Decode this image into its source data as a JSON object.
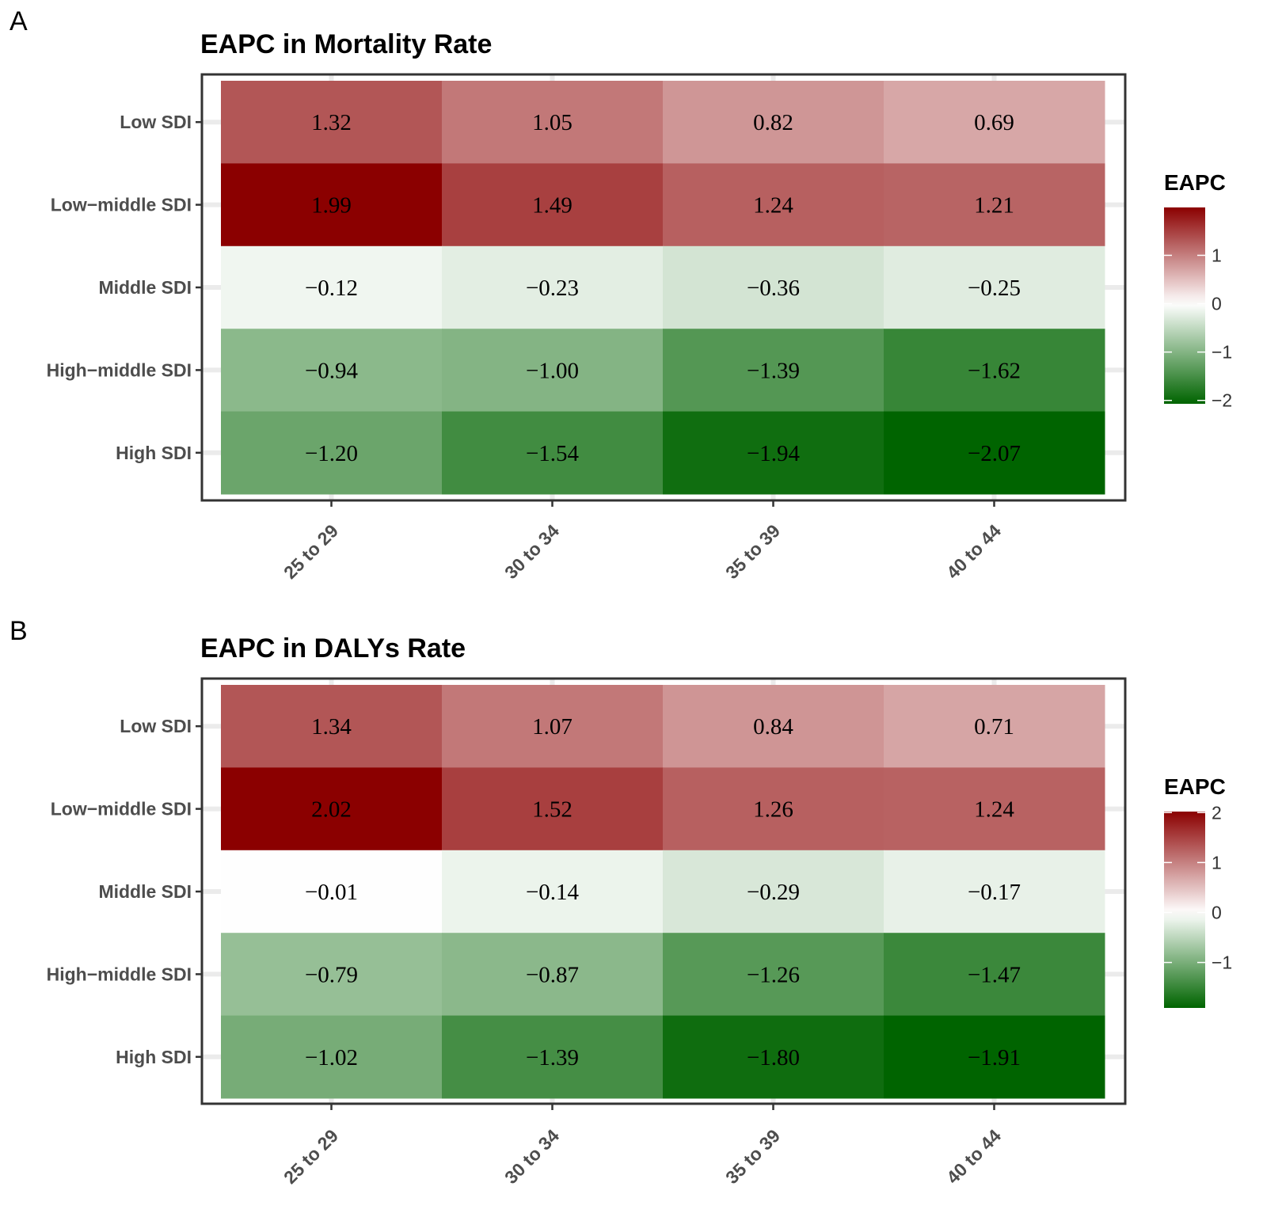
{
  "chart_data": [
    {
      "type": "heatmap",
      "panel_label": "A",
      "title": "EAPC in Mortality Rate",
      "xlabel": "",
      "ylabel": "",
      "x_categories": [
        "25 to 29",
        "30 to 34",
        "35 to 39",
        "40 to 44"
      ],
      "y_categories": [
        "Low SDI",
        "Low−middle SDI",
        "Middle SDI",
        "High−middle SDI",
        "High SDI"
      ],
      "values": [
        [
          1.32,
          1.05,
          0.82,
          0.69
        ],
        [
          1.99,
          1.49,
          1.24,
          1.21
        ],
        [
          -0.12,
          -0.23,
          -0.36,
          -0.25
        ],
        [
          -0.94,
          -1.0,
          -1.39,
          -1.62
        ],
        [
          -1.2,
          -1.54,
          -1.94,
          -2.07
        ]
      ],
      "labels": [
        [
          "1.32",
          "1.05",
          "0.82",
          "0.69"
        ],
        [
          "1.99",
          "1.49",
          "1.24",
          "1.21"
        ],
        [
          "−0.12",
          "−0.23",
          "−0.36",
          "−0.25"
        ],
        [
          "−0.94",
          "−1.00",
          "−1.39",
          "−1.62"
        ],
        [
          "−1.20",
          "−1.54",
          "−1.94",
          "−2.07"
        ]
      ],
      "legend": {
        "title": "EAPC",
        "placement": "right",
        "range": [
          -2.07,
          1.99
        ],
        "ticks": [
          1,
          0,
          -1,
          -2
        ],
        "tick_labels": [
          "1",
          "0",
          "−1",
          "−2"
        ]
      },
      "colors": {
        "high": "#8b0000",
        "mid": "#ffffff",
        "low": "#006400"
      }
    },
    {
      "type": "heatmap",
      "panel_label": "B",
      "title": "EAPC in DALYs Rate",
      "xlabel": "",
      "ylabel": "",
      "x_categories": [
        "25 to 29",
        "30 to 34",
        "35 to 39",
        "40 to 44"
      ],
      "y_categories": [
        "Low SDI",
        "Low−middle SDI",
        "Middle SDI",
        "High−middle SDI",
        "High SDI"
      ],
      "values": [
        [
          1.34,
          1.07,
          0.84,
          0.71
        ],
        [
          2.02,
          1.52,
          1.26,
          1.24
        ],
        [
          -0.01,
          -0.14,
          -0.29,
          -0.17
        ],
        [
          -0.79,
          -0.87,
          -1.26,
          -1.47
        ],
        [
          -1.02,
          -1.39,
          -1.8,
          -1.91
        ]
      ],
      "labels": [
        [
          "1.34",
          "1.07",
          "0.84",
          "0.71"
        ],
        [
          "2.02",
          "1.52",
          "1.26",
          "1.24"
        ],
        [
          "−0.01",
          "−0.14",
          "−0.29",
          "−0.17"
        ],
        [
          "−0.79",
          "−0.87",
          "−1.26",
          "−1.47"
        ],
        [
          "−1.02",
          "−1.39",
          "−1.80",
          "−1.91"
        ]
      ],
      "legend": {
        "title": "EAPC",
        "placement": "right",
        "range": [
          -1.91,
          2.02
        ],
        "ticks": [
          2,
          1,
          0,
          -1
        ],
        "tick_labels": [
          "2",
          "1",
          "0",
          "−1"
        ]
      },
      "colors": {
        "high": "#8b0000",
        "mid": "#ffffff",
        "low": "#006400"
      }
    }
  ]
}
